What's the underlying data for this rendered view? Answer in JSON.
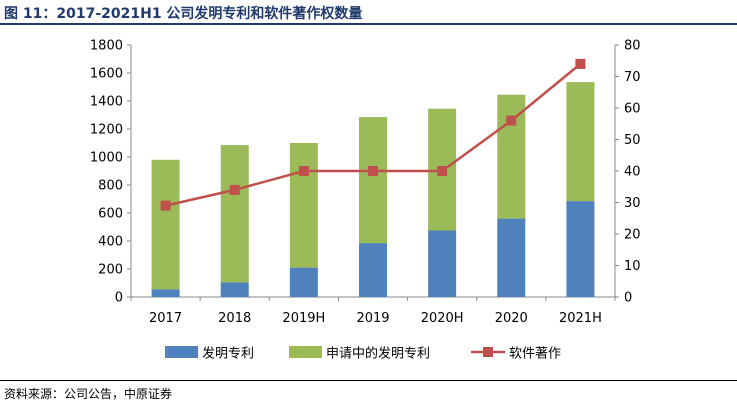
{
  "figure": {
    "title": "图 11：2017-2021H1 公司发明专利和软件著作权数量",
    "source": "资料来源：公司公告，中原证券"
  },
  "chart_data": {
    "type": "bar",
    "stacked": true,
    "categories": [
      "2017",
      "2018",
      "2019H",
      "2019",
      "2020H",
      "2020",
      "2021H"
    ],
    "series": [
      {
        "name": "发明专利",
        "type": "bar",
        "axis": "left",
        "color": "#4f81bd",
        "values": [
          55,
          105,
          210,
          385,
          475,
          560,
          685
        ]
      },
      {
        "name": "申请中的发明专利",
        "type": "bar",
        "axis": "left",
        "color": "#9bbb59",
        "values": [
          925,
          980,
          890,
          900,
          870,
          885,
          850
        ]
      },
      {
        "name": "软件著作",
        "type": "line",
        "axis": "right",
        "color": "#c0504d",
        "marker": "square",
        "values": [
          29,
          34,
          40,
          40,
          40,
          56,
          74
        ]
      }
    ],
    "yleft": {
      "min": 0,
      "max": 1800,
      "ticks": [
        "0",
        "200",
        "400",
        "600",
        "800",
        "1000",
        "1200",
        "1400",
        "1600",
        "1800"
      ]
    },
    "yright": {
      "min": 0,
      "max": 80,
      "ticks": [
        "0",
        "10",
        "20",
        "30",
        "40",
        "50",
        "60",
        "70",
        "80"
      ]
    },
    "grid": false,
    "legend_position": "bottom"
  }
}
